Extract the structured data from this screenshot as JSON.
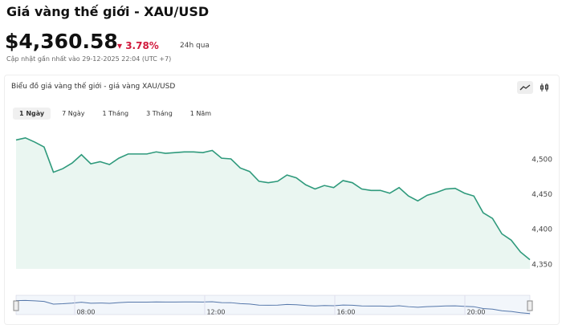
{
  "header": {
    "title": "Giá vàng thế giới - XAU/USD",
    "price": "$4,360.58",
    "change": "3.78%",
    "period": "24h qua",
    "updated": "Cập nhật gần nhất vào 29-12-2025 22:04 (UTC +7)"
  },
  "card": {
    "title": "Biểu đồ giá vàng thế giới - giá vàng XAU/USD",
    "tabs": [
      "1 Ngày",
      "7 Ngày",
      "1 Tháng",
      "3 Tháng",
      "1 Năm"
    ]
  },
  "chart_data": {
    "type": "line",
    "color": "#2f9a7c",
    "values": [
      4528,
      4531,
      4525,
      4518,
      4482,
      4487,
      4495,
      4507,
      4494,
      4497,
      4493,
      4502,
      4508,
      4508,
      4508,
      4511,
      4509,
      4510,
      4511,
      4511,
      4510,
      4513,
      4502,
      4501,
      4488,
      4483,
      4469,
      4467,
      4469,
      4478,
      4474,
      4464,
      4458,
      4463,
      4460,
      4470,
      4467,
      4458,
      4456,
      4456,
      4452,
      4460,
      4448,
      4441,
      4449,
      4453,
      4458,
      4459,
      4452,
      4448,
      4424,
      4416,
      4394,
      4385,
      4368,
      4357
    ],
    "ylim": [
      4344,
      4556
    ],
    "yticks": [
      {
        "value": 4500,
        "label": "4,500"
      },
      {
        "value": 4450,
        "label": "4,450"
      },
      {
        "value": 4400,
        "label": "4,400"
      },
      {
        "value": 4350,
        "label": "4,350"
      }
    ],
    "navigator_ticks": [
      "08:00",
      "12:00",
      "16:00",
      "20:00"
    ]
  }
}
